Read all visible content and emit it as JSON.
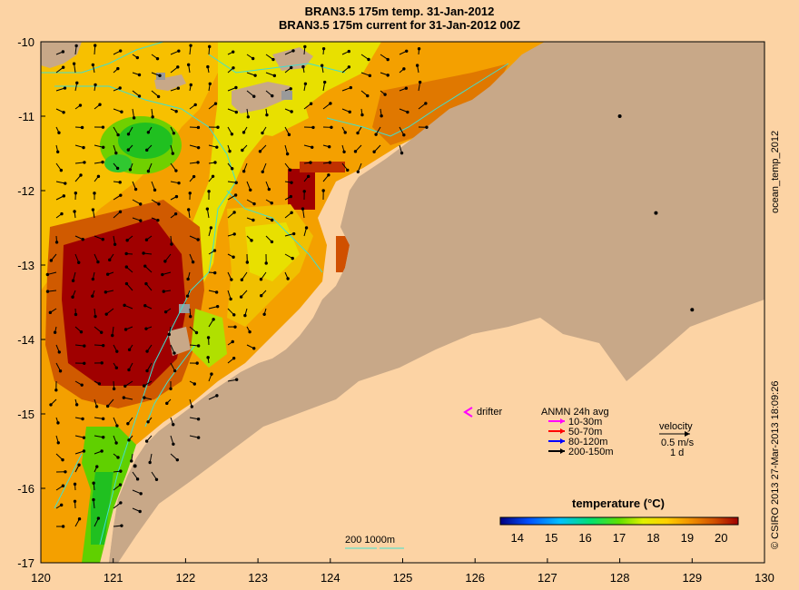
{
  "title": "BRAN3.5 175m temp. 31-Jan-2012",
  "subtitle": "BRAN3.5 175m current for 31-Jan-2012 00Z",
  "side_label_top": "ocean_temp_2012",
  "side_label_bottom": "© CSIRO 2013   27-Mar-2013 18:09:26",
  "legend": {
    "drifter_label": "drifter",
    "anmn_title": "ANMN 24h avg",
    "anmn_items": [
      {
        "label": "10-30m",
        "color": "#ff00ff"
      },
      {
        "label": "50-70m",
        "color": "#ff0000"
      },
      {
        "label": "80-120m",
        "color": "#0000ff"
      },
      {
        "label": "200-150m",
        "color": "#000000"
      }
    ],
    "velocity_title": "velocity",
    "velocity_scale": "0.5 m/s",
    "velocity_period": "1 d",
    "bathy_label": "200   1000m"
  },
  "colorbar": {
    "title": "temperature (°C)",
    "ticks": [
      "14",
      "15",
      "16",
      "17",
      "18",
      "19",
      "20"
    ],
    "min": 13.5,
    "max": 20.5
  },
  "chart_data": {
    "type": "heatmap",
    "xlim": [
      120,
      130
    ],
    "ylim": [
      -17,
      -10
    ],
    "xticks": [
      "120",
      "121",
      "122",
      "123",
      "124",
      "125",
      "126",
      "127",
      "128",
      "129",
      "130"
    ],
    "yticks": [
      "-10",
      "-11",
      "-12",
      "-13",
      "-14",
      "-15",
      "-16",
      "-17"
    ],
    "stations": [
      {
        "lon": 128.0,
        "lat": -11.0
      },
      {
        "lon": 128.5,
        "lat": -12.3
      },
      {
        "lon": 129.0,
        "lat": -13.6
      },
      {
        "lon": 121.3,
        "lat": -15.7
      }
    ],
    "colors": {
      "land": "#c8a888",
      "background": "#fcd3a4",
      "bathy": "#40e0d0"
    }
  }
}
